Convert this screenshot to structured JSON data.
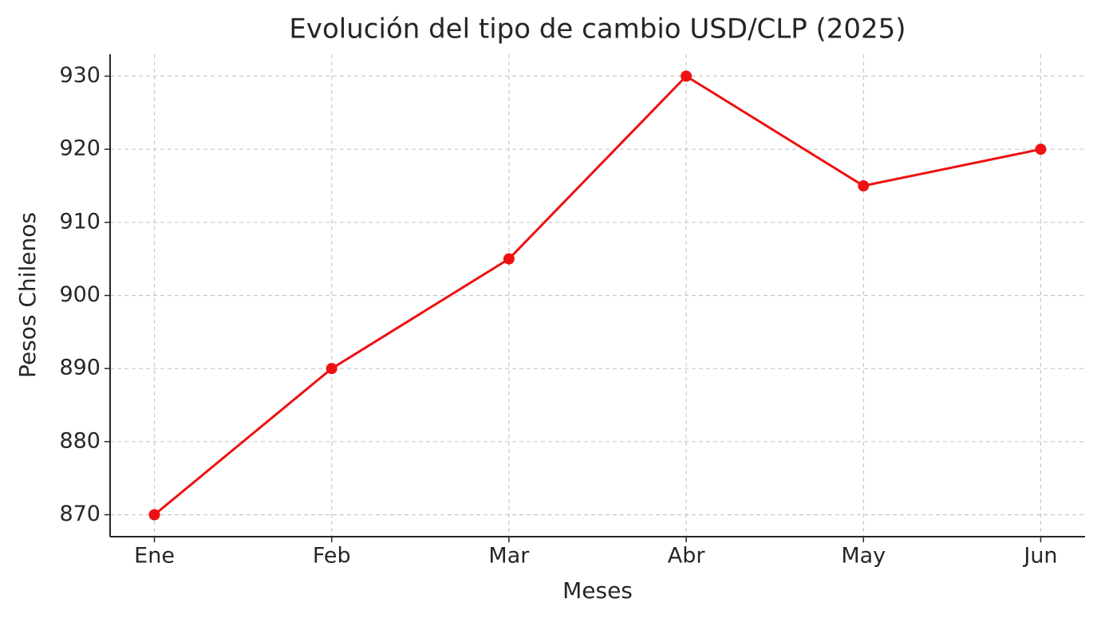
{
  "chart_data": {
    "type": "line",
    "title": "Evolución del tipo de cambio USD/CLP (2025)",
    "x_label": "Meses",
    "y_label": "Pesos Chilenos",
    "categories": [
      "Ene",
      "Feb",
      "Mar",
      "Abr",
      "May",
      "Jun"
    ],
    "series": [
      {
        "name": "USD/CLP",
        "color": "#ee1111",
        "values": [
          870,
          890,
          905,
          930,
          915,
          920
        ]
      }
    ],
    "ylim": [
      867,
      933
    ],
    "yticks": [
      870,
      880,
      890,
      900,
      910,
      920,
      930
    ],
    "grid": true
  }
}
